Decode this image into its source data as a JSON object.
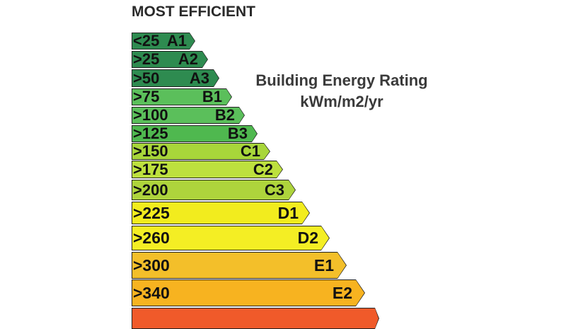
{
  "header": {
    "title": "MOST EFFICIENT"
  },
  "scale": {
    "title": "Building Energy Rating",
    "unit": "kWm/m2/yr"
  },
  "colors": {
    "A1": "#2e8b50",
    "A2": "#2e8b50",
    "A3": "#2e8b50",
    "B1": "#5bbf5b",
    "B2": "#5bbf5b",
    "B3": "#4fb84f",
    "C1": "#a8d63a",
    "C2": "#bde03e",
    "C3": "#aed43c",
    "D1": "#f2ec1e",
    "D2": "#f4ee24",
    "E1": "#f3bf2a",
    "E2": "#f7b320",
    "F": "#f05a2a"
  },
  "ratings": [
    {
      "code": "A1",
      "range": "<25"
    },
    {
      "code": "A2",
      "range": ">25"
    },
    {
      "code": "A3",
      "range": ">50"
    },
    {
      "code": "B1",
      "range": ">75"
    },
    {
      "code": "B2",
      "range": ">100"
    },
    {
      "code": "B3",
      "range": ">125"
    },
    {
      "code": "C1",
      "range": ">150"
    },
    {
      "code": "C2",
      "range": ">175"
    },
    {
      "code": "C3",
      "range": ">200"
    },
    {
      "code": "D1",
      "range": ">225"
    },
    {
      "code": "D2",
      "range": ">260"
    },
    {
      "code": "E1",
      "range": ">300"
    },
    {
      "code": "E2",
      "range": ">340"
    },
    {
      "code": "",
      "range": ""
    }
  ]
}
